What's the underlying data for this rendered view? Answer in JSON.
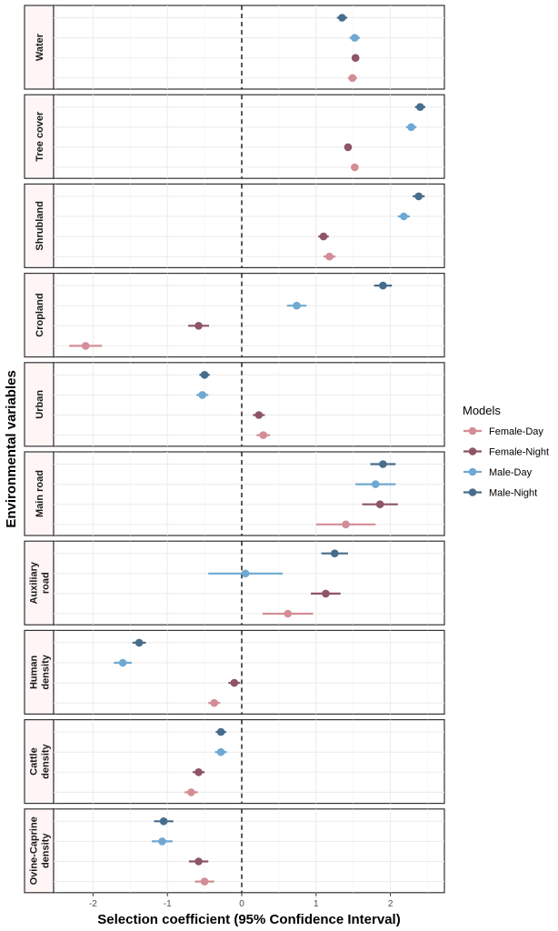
{
  "chart_data": {
    "type": "scatter",
    "subtype": "dot-whisker (point estimate with 95% confidence interval), faceted by variable",
    "xlabel": "Selection coefficient (95% Confidence Interval)",
    "ylabel": "Environmental variables",
    "xlim": [
      -2.6,
      2.75
    ],
    "x_ticks": [
      -2,
      -1,
      0,
      1,
      2
    ],
    "x_tick_labels": [
      "-2",
      "-1",
      "0",
      "1",
      "2"
    ],
    "reference_line": {
      "x": 0,
      "style": "dashed"
    },
    "grid": true,
    "legend": {
      "title": "Models",
      "position": "right",
      "entries": [
        "Female-Day",
        "Female-Night",
        "Male-Day",
        "Male-Night"
      ]
    },
    "colors": {
      "Female-Day": "#d38d96",
      "Female-Night": "#8d5565",
      "Male-Day": "#6fa8d2",
      "Male-Night": "#466d8c"
    },
    "panels": [
      {
        "label": "Water",
        "estimates": [
          {
            "model": "Male-Night",
            "value": 1.35,
            "lower": 1.28,
            "upper": 1.42
          },
          {
            "model": "Male-Day",
            "value": 1.52,
            "lower": 1.45,
            "upper": 1.59
          },
          {
            "model": "Female-Night",
            "value": 1.53,
            "lower": 1.48,
            "upper": 1.58
          },
          {
            "model": "Female-Day",
            "value": 1.49,
            "lower": 1.43,
            "upper": 1.55
          }
        ]
      },
      {
        "label": "Tree cover",
        "estimates": [
          {
            "model": "Male-Night",
            "value": 2.4,
            "lower": 2.33,
            "upper": 2.47
          },
          {
            "model": "Male-Day",
            "value": 2.28,
            "lower": 2.21,
            "upper": 2.35
          },
          {
            "model": "Female-Night",
            "value": 1.43,
            "lower": 1.38,
            "upper": 1.48
          },
          {
            "model": "Female-Day",
            "value": 1.52,
            "lower": 1.47,
            "upper": 1.57
          }
        ]
      },
      {
        "label": "Shrubland",
        "estimates": [
          {
            "model": "Male-Night",
            "value": 2.38,
            "lower": 2.3,
            "upper": 2.46
          },
          {
            "model": "Male-Day",
            "value": 2.18,
            "lower": 2.1,
            "upper": 2.26
          },
          {
            "model": "Female-Night",
            "value": 1.1,
            "lower": 1.03,
            "upper": 1.17
          },
          {
            "model": "Female-Day",
            "value": 1.18,
            "lower": 1.1,
            "upper": 1.26
          }
        ]
      },
      {
        "label": "Cropland",
        "estimates": [
          {
            "model": "Male-Night",
            "value": 1.9,
            "lower": 1.78,
            "upper": 2.02
          },
          {
            "model": "Male-Day",
            "value": 0.74,
            "lower": 0.61,
            "upper": 0.87
          },
          {
            "model": "Female-Night",
            "value": -0.58,
            "lower": -0.72,
            "upper": -0.44
          },
          {
            "model": "Female-Day",
            "value": -2.1,
            "lower": -2.32,
            "upper": -1.88
          }
        ]
      },
      {
        "label": "Urban",
        "estimates": [
          {
            "model": "Male-Night",
            "value": -0.5,
            "lower": -0.57,
            "upper": -0.43
          },
          {
            "model": "Male-Day",
            "value": -0.53,
            "lower": -0.61,
            "upper": -0.45
          },
          {
            "model": "Female-Night",
            "value": 0.23,
            "lower": 0.15,
            "upper": 0.31
          },
          {
            "model": "Female-Day",
            "value": 0.29,
            "lower": 0.2,
            "upper": 0.38
          }
        ]
      },
      {
        "label": "Main road",
        "estimates": [
          {
            "model": "Male-Night",
            "value": 1.9,
            "lower": 1.73,
            "upper": 2.07
          },
          {
            "model": "Male-Day",
            "value": 1.8,
            "lower": 1.53,
            "upper": 2.07
          },
          {
            "model": "Female-Night",
            "value": 1.86,
            "lower": 1.62,
            "upper": 2.1
          },
          {
            "model": "Female-Day",
            "value": 1.4,
            "lower": 1.0,
            "upper": 1.8
          }
        ]
      },
      {
        "label": "Auxiliary road",
        "label_lines": [
          "Auxiliary",
          "road"
        ],
        "estimates": [
          {
            "model": "Male-Night",
            "value": 1.25,
            "lower": 1.07,
            "upper": 1.43
          },
          {
            "model": "Male-Day",
            "value": 0.05,
            "lower": -0.45,
            "upper": 0.55
          },
          {
            "model": "Female-Night",
            "value": 1.13,
            "lower": 0.93,
            "upper": 1.33
          },
          {
            "model": "Female-Day",
            "value": 0.62,
            "lower": 0.28,
            "upper": 0.96
          }
        ]
      },
      {
        "label": "Human density",
        "label_lines": [
          "Human",
          "density"
        ],
        "estimates": [
          {
            "model": "Male-Night",
            "value": -1.38,
            "lower": -1.47,
            "upper": -1.29
          },
          {
            "model": "Male-Day",
            "value": -1.6,
            "lower": -1.72,
            "upper": -1.48
          },
          {
            "model": "Female-Night",
            "value": -0.1,
            "lower": -0.18,
            "upper": -0.02
          },
          {
            "model": "Female-Day",
            "value": -0.37,
            "lower": -0.45,
            "upper": -0.29
          }
        ]
      },
      {
        "label": "Cattle density",
        "label_lines": [
          "Cattle",
          "density"
        ],
        "estimates": [
          {
            "model": "Male-Night",
            "value": -0.28,
            "lower": -0.35,
            "upper": -0.21
          },
          {
            "model": "Male-Day",
            "value": -0.28,
            "lower": -0.36,
            "upper": -0.2
          },
          {
            "model": "Female-Night",
            "value": -0.58,
            "lower": -0.66,
            "upper": -0.5
          },
          {
            "model": "Female-Day",
            "value": -0.68,
            "lower": -0.77,
            "upper": -0.59
          }
        ]
      },
      {
        "label": "Ovine-Caprine density",
        "label_lines": [
          "Ovine-Caprine",
          "density"
        ],
        "estimates": [
          {
            "model": "Male-Night",
            "value": -1.05,
            "lower": -1.18,
            "upper": -0.92
          },
          {
            "model": "Male-Day",
            "value": -1.07,
            "lower": -1.21,
            "upper": -0.93
          },
          {
            "model": "Female-Night",
            "value": -0.58,
            "lower": -0.71,
            "upper": -0.45
          },
          {
            "model": "Female-Day",
            "value": -0.5,
            "lower": -0.63,
            "upper": -0.37
          }
        ]
      }
    ]
  }
}
